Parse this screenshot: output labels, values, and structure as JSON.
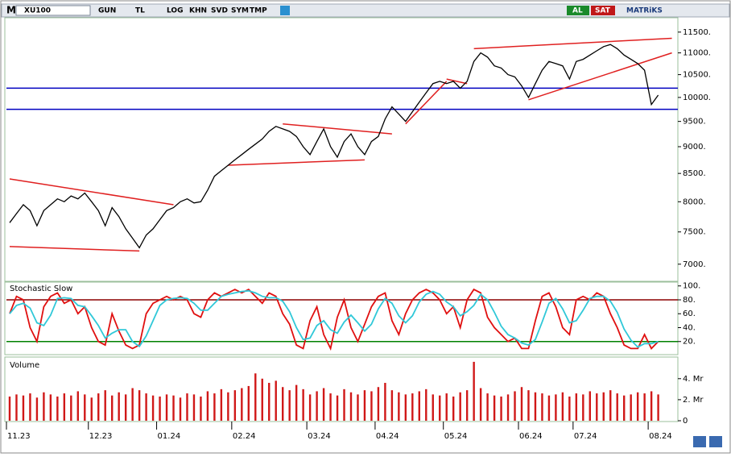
{
  "toolbar": {
    "logo": "M",
    "symbol": "XU100",
    "buttons": [
      "GUN",
      "TL",
      "LOG",
      "KHN",
      "SVD",
      "SYM",
      "TMP"
    ],
    "buy": "AL",
    "sell": "SAT",
    "brand": "MATRiKS"
  },
  "chart_data": [
    {
      "type": "line",
      "log_scale": true,
      "color": "#000000",
      "ylim": [
        6760,
        11900
      ],
      "yticks": [
        {
          "value": 11500,
          "label": "11500."
        },
        {
          "value": 11000,
          "label": "11000."
        },
        {
          "value": 10500,
          "label": "10500."
        },
        {
          "value": 10000,
          "label": "10000."
        },
        {
          "value": 9500,
          "label": "9500."
        },
        {
          "value": 9000,
          "label": "9000."
        },
        {
          "value": 8500,
          "label": "8500."
        },
        {
          "value": 8000,
          "label": "8000."
        },
        {
          "value": 7500,
          "label": "7500."
        },
        {
          "value": 7000,
          "label": "7000."
        }
      ],
      "values": [
        7650,
        7800,
        7950,
        7850,
        7600,
        7850,
        7950,
        8050,
        8000,
        8100,
        8050,
        8150,
        8000,
        7850,
        7600,
        7900,
        7750,
        7550,
        7400,
        7250,
        7450,
        7550,
        7700,
        7850,
        7900,
        8000,
        8050,
        7980,
        8000,
        8200,
        8450,
        8550,
        8650,
        8750,
        8850,
        8950,
        9050,
        9150,
        9300,
        9400,
        9350,
        9300,
        9200,
        9000,
        8850,
        9100,
        9350,
        9000,
        8800,
        9100,
        9250,
        9000,
        8850,
        9100,
        9200,
        9550,
        9800,
        9650,
        9500,
        9700,
        9900,
        10100,
        10300,
        10350,
        10300,
        10350,
        10200,
        10350,
        10800,
        11000,
        10900,
        10700,
        10650,
        10500,
        10450,
        10250,
        10000,
        10300,
        10600,
        10800,
        10750,
        10700,
        10400,
        10800,
        10850,
        10950,
        11050,
        11150,
        11200,
        11100,
        10950,
        10850,
        10750,
        10600,
        9850,
        10050
      ],
      "hlines": [
        10200,
        9750
      ],
      "hline_color": "#0000c0",
      "trendlines": [
        {
          "x": [
            0,
            24
          ],
          "y": [
            8400,
            7950
          ]
        },
        {
          "x": [
            0,
            19
          ],
          "y": [
            7270,
            7200
          ]
        },
        {
          "x": [
            32,
            52
          ],
          "y": [
            8650,
            8750
          ]
        },
        {
          "x": [
            40,
            56
          ],
          "y": [
            9450,
            9250
          ]
        },
        {
          "x": [
            58,
            64
          ],
          "y": [
            9450,
            10350
          ]
        },
        {
          "x": [
            64,
            67
          ],
          "y": [
            10400,
            10300
          ]
        },
        {
          "x": [
            68,
            97
          ],
          "y": [
            11100,
            11350
          ]
        },
        {
          "x": [
            76,
            97
          ],
          "y": [
            9950,
            11000
          ]
        }
      ],
      "trend_color": "#e02020"
    },
    {
      "type": "line",
      "title": "Stochastic Slow",
      "ylim": [
        0,
        105.5
      ],
      "yticks": [
        {
          "value": 100,
          "label": "100."
        },
        {
          "value": 80,
          "label": "80."
        },
        {
          "value": 60,
          "label": "60."
        },
        {
          "value": 40,
          "label": "40."
        },
        {
          "value": 20,
          "label": "20."
        }
      ],
      "levels": [
        80,
        20
      ],
      "level_colors": [
        "#8b0000",
        "#008000"
      ],
      "series": [
        {
          "color": "#e01010",
          "values": [
            60,
            85,
            80,
            40,
            20,
            70,
            85,
            90,
            75,
            80,
            60,
            70,
            40,
            20,
            15,
            60,
            35,
            15,
            10,
            15,
            60,
            75,
            80,
            85,
            80,
            85,
            80,
            60,
            55,
            80,
            90,
            85,
            90,
            95,
            90,
            95,
            85,
            75,
            90,
            85,
            60,
            45,
            15,
            10,
            50,
            70,
            30,
            10,
            55,
            80,
            40,
            20,
            45,
            70,
            85,
            90,
            50,
            30,
            60,
            80,
            90,
            95,
            90,
            80,
            60,
            70,
            40,
            80,
            95,
            90,
            55,
            40,
            30,
            20,
            25,
            10,
            10,
            50,
            85,
            90,
            70,
            40,
            30,
            80,
            85,
            80,
            90,
            85,
            60,
            40,
            15,
            10,
            10,
            30,
            10,
            20
          ]
        },
        {
          "color": "#30c8d8",
          "values": [
            60,
            72,
            75,
            68,
            47,
            43,
            58,
            82,
            83,
            82,
            72,
            70,
            57,
            43,
            25,
            32,
            37,
            37,
            20,
            13,
            28,
            50,
            72,
            80,
            82,
            83,
            82,
            75,
            65,
            65,
            75,
            85,
            88,
            90,
            92,
            93,
            90,
            85,
            83,
            83,
            78,
            63,
            40,
            23,
            25,
            43,
            50,
            37,
            32,
            48,
            58,
            47,
            35,
            45,
            67,
            82,
            75,
            57,
            47,
            57,
            77,
            88,
            92,
            88,
            77,
            70,
            57,
            63,
            72,
            88,
            80,
            62,
            42,
            30,
            25,
            18,
            15,
            23,
            48,
            75,
            82,
            67,
            47,
            50,
            65,
            82,
            85,
            85,
            78,
            62,
            38,
            22,
            12,
            17,
            17,
            20
          ]
        }
      ]
    },
    {
      "type": "bar",
      "title": "Volume",
      "color": "#d01818",
      "ylim": [
        0,
        5.9
      ],
      "yticks": [
        {
          "value": 4,
          "label": "4. Mr"
        },
        {
          "value": 2,
          "label": "2. Mr"
        },
        0
      ],
      "values": [
        2.3,
        2.5,
        2.4,
        2.6,
        2.2,
        2.7,
        2.5,
        2.3,
        2.6,
        2.4,
        2.8,
        2.5,
        2.2,
        2.6,
        2.9,
        2.4,
        2.7,
        2.5,
        3.1,
        2.9,
        2.6,
        2.4,
        2.3,
        2.5,
        2.4,
        2.2,
        2.6,
        2.5,
        2.3,
        2.8,
        2.6,
        3.0,
        2.7,
        2.9,
        3.1,
        3.3,
        4.5,
        4.0,
        3.6,
        3.8,
        3.2,
        2.9,
        3.4,
        3.0,
        2.5,
        2.8,
        3.1,
        2.6,
        2.4,
        3.0,
        2.7,
        2.5,
        2.9,
        2.8,
        3.2,
        3.6,
        2.9,
        2.7,
        2.5,
        2.6,
        2.8,
        3.0,
        2.5,
        2.4,
        2.6,
        2.3,
        2.7,
        2.9,
        5.6,
        3.1,
        2.6,
        2.4,
        2.3,
        2.5,
        2.8,
        3.2,
        2.9,
        2.7,
        2.6,
        2.4,
        2.5,
        2.7,
        2.3,
        2.6,
        2.5,
        2.8,
        2.6,
        2.7,
        2.9,
        2.6,
        2.4,
        2.5,
        2.7,
        2.6,
        2.8,
        2.5
      ],
      "categories": [
        "11.23",
        null,
        null,
        null,
        null,
        null,
        null,
        null,
        null,
        null,
        null,
        null,
        "12.23",
        null,
        null,
        null,
        null,
        null,
        null,
        null,
        null,
        null,
        "01.24",
        null,
        null,
        null,
        null,
        null,
        null,
        null,
        null,
        null,
        null,
        "02.24",
        null,
        null,
        null,
        null,
        null,
        null,
        null,
        null,
        null,
        null,
        "03.24",
        null,
        null,
        null,
        null,
        null,
        null,
        null,
        null,
        null,
        "04.24",
        null,
        null,
        null,
        null,
        null,
        null,
        null,
        null,
        null,
        "05.24",
        null,
        null,
        null,
        null,
        null,
        null,
        null,
        null,
        null,
        null,
        "06.24",
        null,
        null,
        null,
        null,
        null,
        null,
        null,
        "07.24",
        null,
        null,
        null,
        null,
        null,
        null,
        null,
        null,
        null,
        null,
        "08.24",
        null
      ]
    }
  ]
}
